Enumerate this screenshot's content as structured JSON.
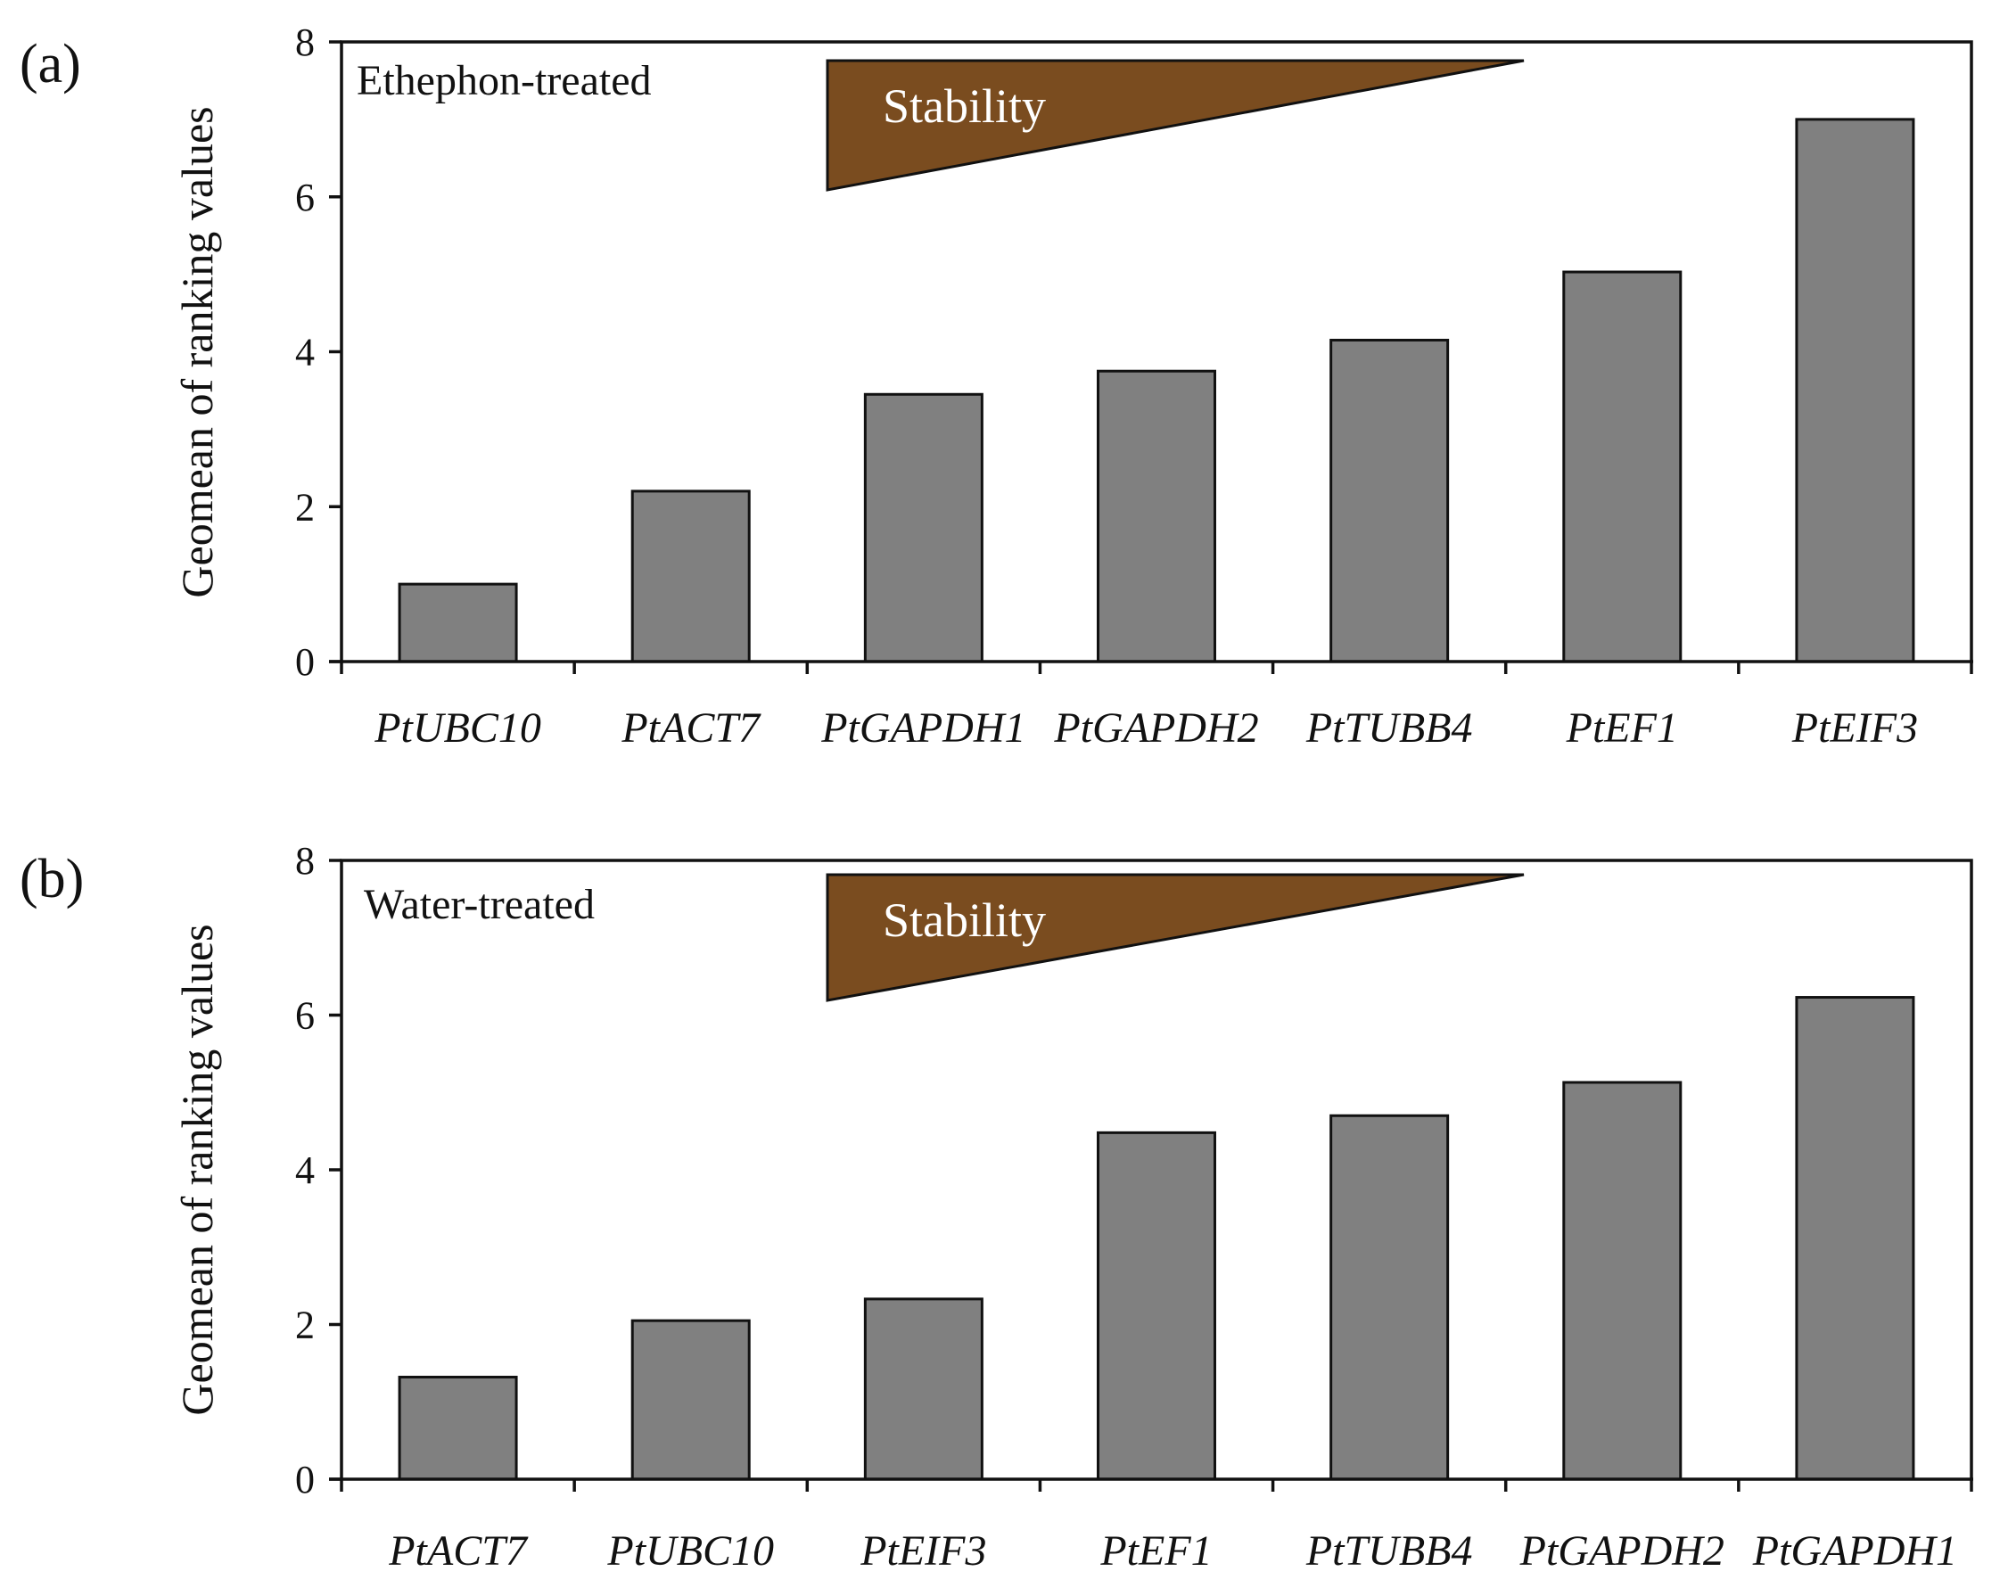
{
  "colors": {
    "bar_fill": "#808080",
    "bar_stroke": "#111111",
    "wedge_fill": "#7a4c1f",
    "axis": "#111111"
  },
  "chart_data": [
    {
      "type": "bar",
      "panel_label": "(a)",
      "condition_label": "Ethephon-treated",
      "indicator_label": "Stability",
      "ylabel": "Geomean of ranking values",
      "xlabel": "",
      "ylim": [
        0,
        8
      ],
      "yticks": [
        0,
        2,
        4,
        6,
        8
      ],
      "grid": false,
      "categories": [
        "PtUBC10",
        "PtACT7",
        "PtGAPDH1",
        "PtGAPDH2",
        "PtTUBB4",
        "PtEF1",
        "PtEIF3"
      ],
      "values": [
        1.0,
        2.2,
        3.45,
        3.75,
        4.15,
        5.03,
        7.0
      ]
    },
    {
      "type": "bar",
      "panel_label": "(b)",
      "condition_label": "Water-treated",
      "indicator_label": "Stability",
      "ylabel": "Geomean of ranking values",
      "xlabel": "",
      "ylim": [
        0,
        8
      ],
      "yticks": [
        0,
        2,
        4,
        6,
        8
      ],
      "grid": false,
      "categories": [
        "PtACT7",
        "PtUBC10",
        "PtEIF3",
        "PtEF1",
        "PtTUBB4",
        "PtGAPDH2",
        "PtGAPDH1"
      ],
      "values": [
        1.32,
        2.05,
        2.33,
        4.48,
        4.7,
        5.13,
        6.23
      ]
    }
  ]
}
